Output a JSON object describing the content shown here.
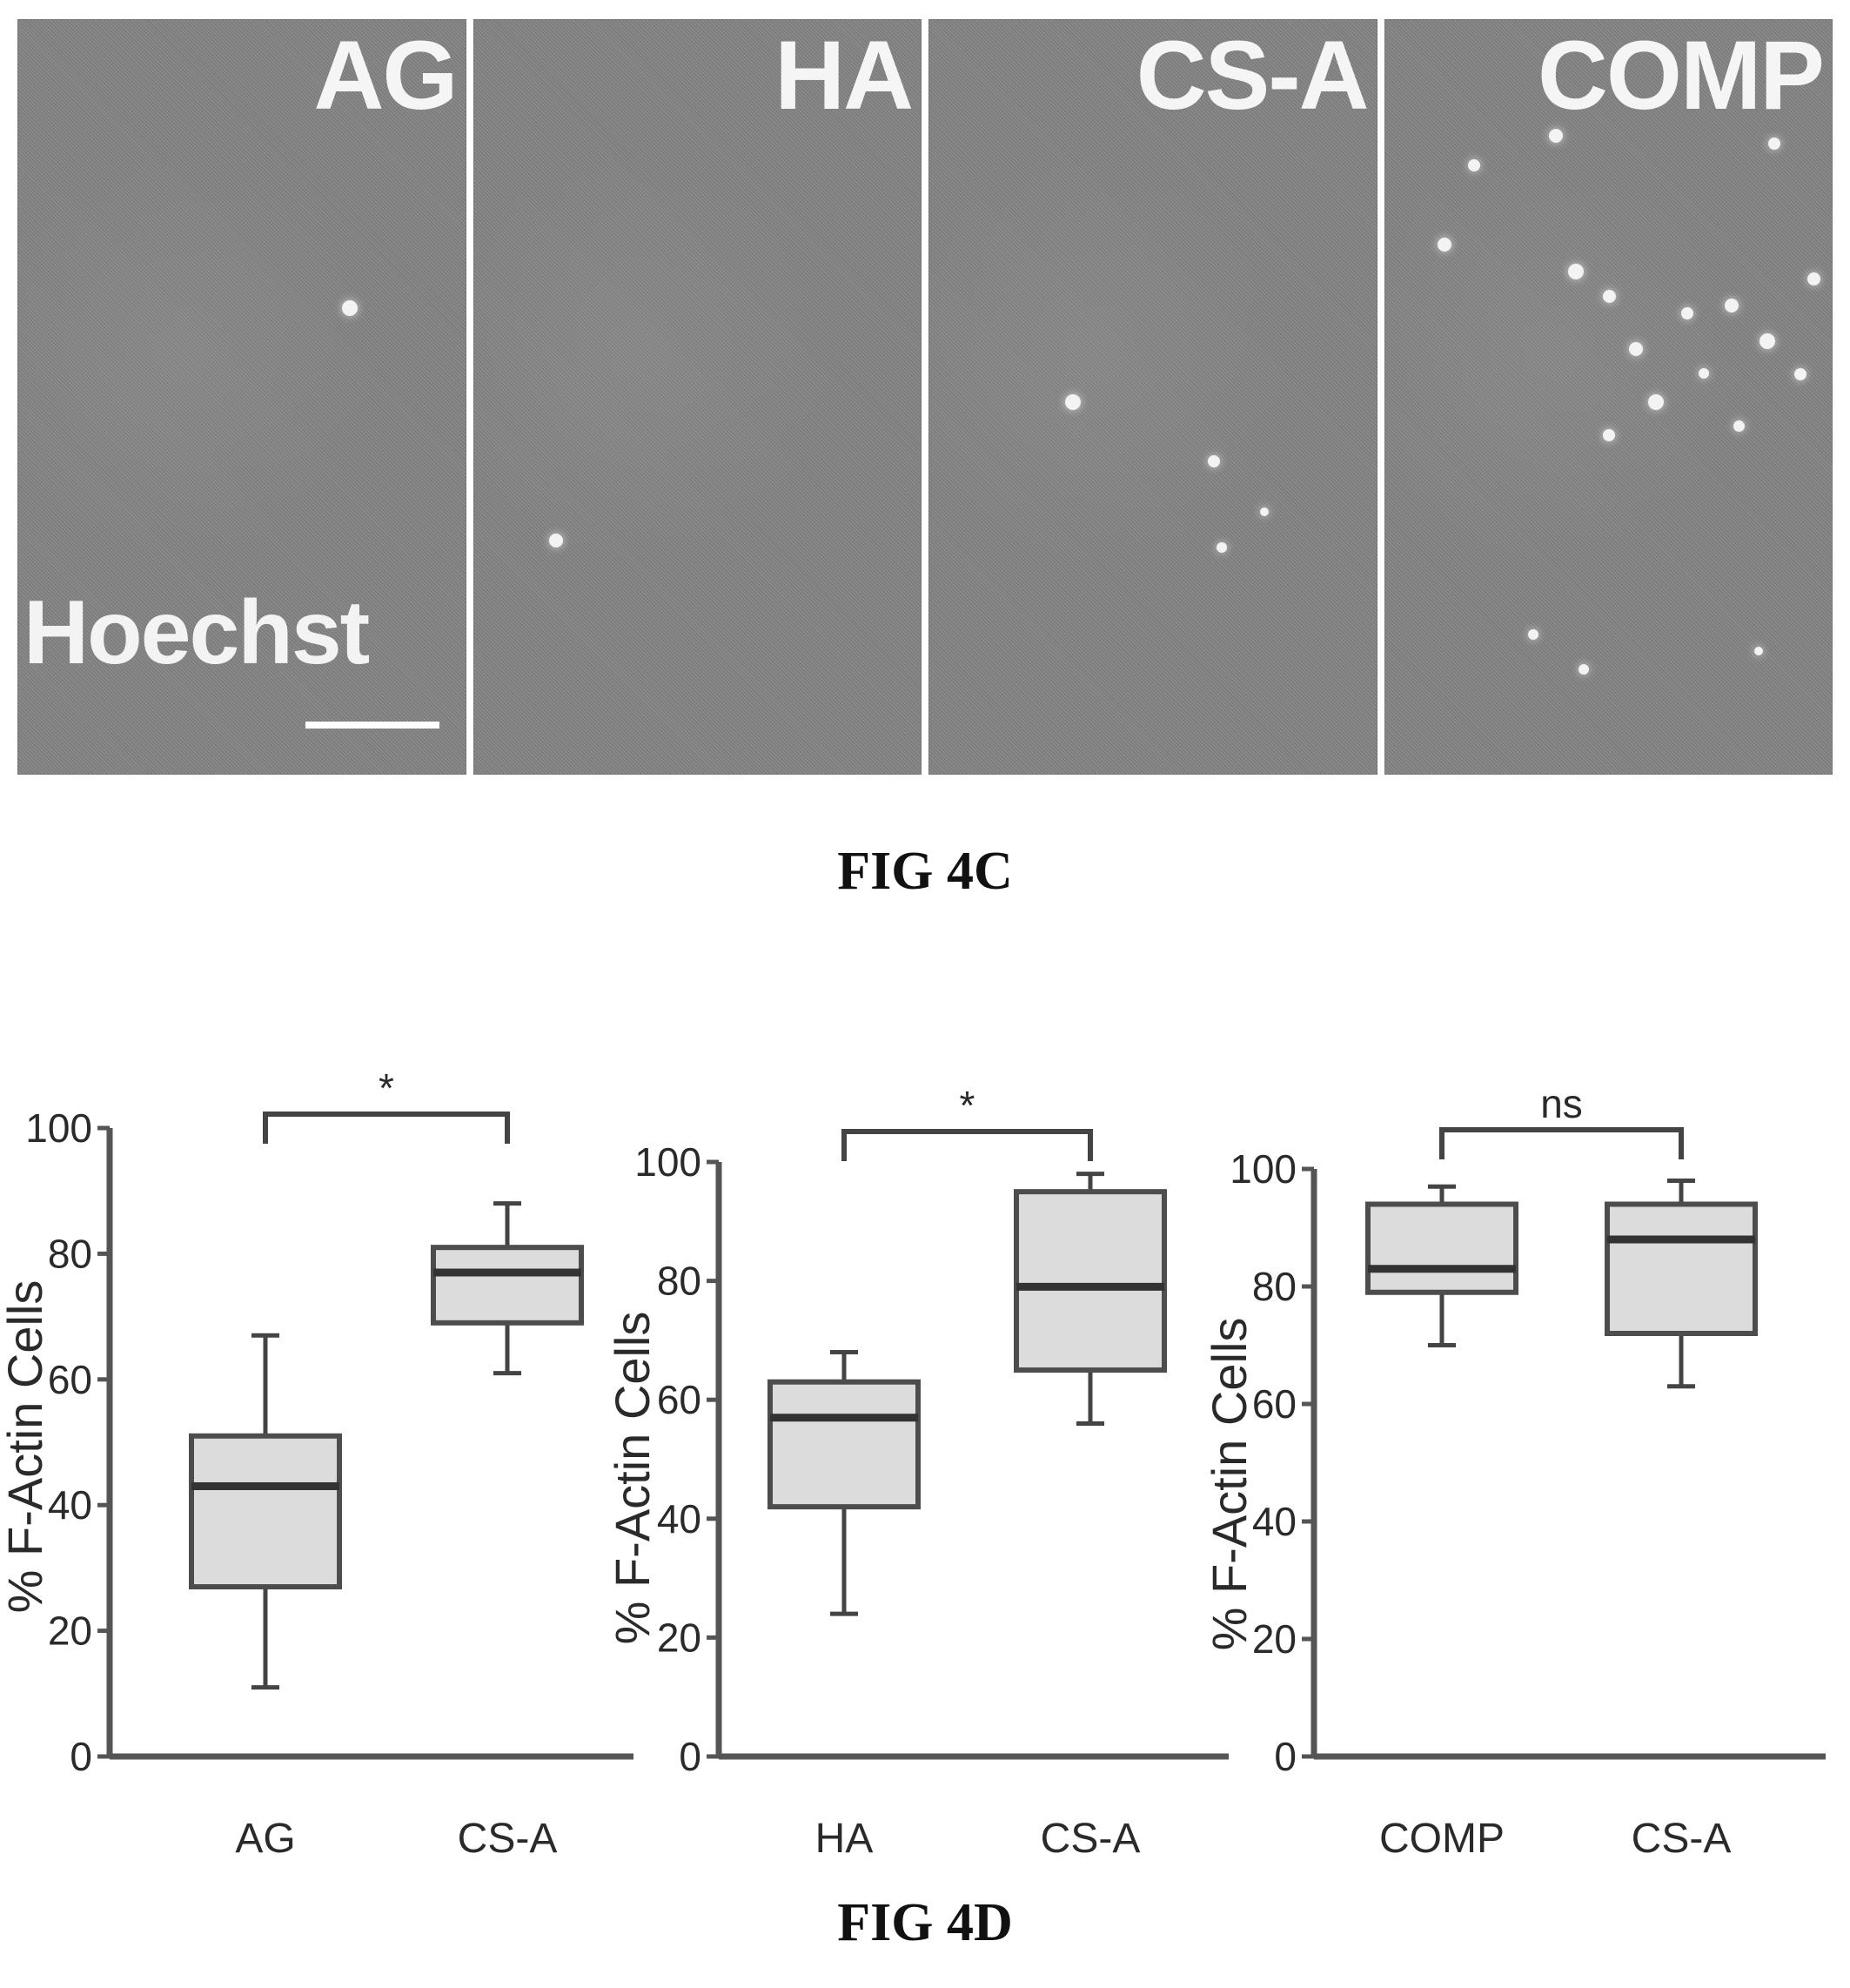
{
  "figure_4c": {
    "panels": [
      {
        "label": "AG"
      },
      {
        "label": "HA"
      },
      {
        "label": "CS-A"
      },
      {
        "label": "COMP"
      }
    ],
    "stain_label": "Hoechst",
    "caption": "FIG 4C"
  },
  "figure_4d": {
    "caption": "FIG 4D"
  },
  "chart_data": [
    {
      "type": "box",
      "categories": [
        "AG",
        "CS-A"
      ],
      "ylabel": "% F-Actin Cells",
      "ylim": [
        0,
        100
      ],
      "yticks": [
        0,
        20,
        40,
        60,
        80,
        100
      ],
      "significance": "*",
      "boxes": [
        {
          "category": "AG",
          "min": 11,
          "q1": 27,
          "median": 43,
          "q3": 51,
          "max": 67
        },
        {
          "category": "CS-A",
          "min": 61,
          "q1": 69,
          "median": 77,
          "q3": 81,
          "max": 88
        }
      ]
    },
    {
      "type": "box",
      "categories": [
        "HA",
        "CS-A"
      ],
      "ylabel": "% F-Actin Cells",
      "ylim": [
        0,
        100
      ],
      "yticks": [
        0,
        20,
        40,
        60,
        80,
        100
      ],
      "significance": "*",
      "boxes": [
        {
          "category": "HA",
          "min": 24,
          "q1": 42,
          "median": 57,
          "q3": 63,
          "max": 68
        },
        {
          "category": "CS-A",
          "min": 56,
          "q1": 65,
          "median": 79,
          "q3": 95,
          "max": 98
        }
      ]
    },
    {
      "type": "box",
      "categories": [
        "COMP",
        "CS-A"
      ],
      "ylabel": "% F-Actin Cells",
      "ylim": [
        0,
        100
      ],
      "yticks": [
        0,
        20,
        40,
        60,
        80,
        100
      ],
      "significance": "ns",
      "boxes": [
        {
          "category": "COMP",
          "min": 70,
          "q1": 79,
          "median": 83,
          "q3": 94,
          "max": 97
        },
        {
          "category": "CS-A",
          "min": 63,
          "q1": 72,
          "median": 88,
          "q3": 94,
          "max": 98
        }
      ]
    }
  ]
}
